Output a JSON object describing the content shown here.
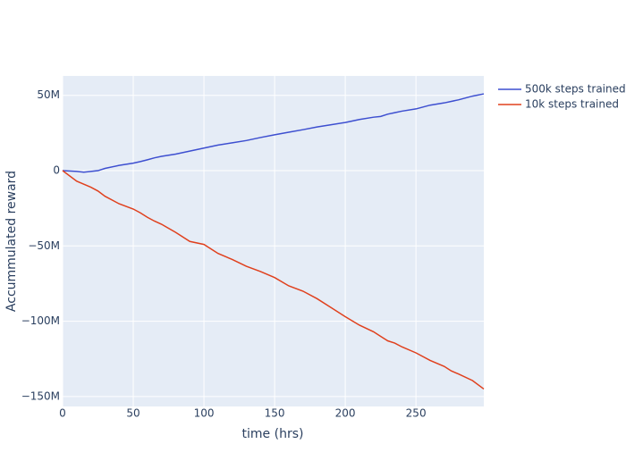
{
  "chart_data": {
    "type": "line",
    "x_label": "time (hrs)",
    "y_label": "Accummulated reward",
    "x": [
      0,
      10,
      15,
      20,
      25,
      30,
      40,
      50,
      55,
      60,
      65,
      70,
      80,
      90,
      100,
      110,
      120,
      130,
      140,
      150,
      160,
      170,
      180,
      190,
      200,
      210,
      220,
      225,
      230,
      235,
      240,
      250,
      260,
      270,
      275,
      280,
      290,
      298
    ],
    "series": [
      {
        "name": "500k steps trained",
        "color": "#3d4fd0",
        "values": [
          0,
          -500000,
          -1000000,
          -500000,
          0,
          1500000,
          3500000,
          5000000,
          6000000,
          7200000,
          8500000,
          9500000,
          11000000,
          13000000,
          15000000,
          17000000,
          18500000,
          20000000,
          22000000,
          23800000,
          25500000,
          27200000,
          29000000,
          30500000,
          32000000,
          34000000,
          35500000,
          36000000,
          37500000,
          38500000,
          39500000,
          41000000,
          43500000,
          45000000,
          46000000,
          47000000,
          49500000,
          51000000
        ]
      },
      {
        "name": "10k steps trained",
        "color": "#e0401d",
        "values": [
          0,
          -7000000,
          -9000000,
          -11000000,
          -13500000,
          -17000000,
          -22000000,
          -25500000,
          -28000000,
          -31000000,
          -33500000,
          -35600000,
          -41000000,
          -47000000,
          -49000000,
          -55000000,
          -59000000,
          -63500000,
          -67000000,
          -71000000,
          -76500000,
          -80000000,
          -85000000,
          -91000000,
          -97000000,
          -102600000,
          -107000000,
          -110000000,
          -113000000,
          -114500000,
          -117000000,
          -121000000,
          -126000000,
          -130000000,
          -133000000,
          -135000000,
          -139400000,
          -145000000
        ]
      }
    ],
    "xlim": [
      0,
      298
    ],
    "xticks": [
      0,
      50,
      100,
      150,
      200,
      250
    ],
    "ylim": [
      -156600000,
      62900000
    ],
    "yticks": [
      {
        "value": -150000000,
        "label": "−150M"
      },
      {
        "value": -100000000,
        "label": "−100M"
      },
      {
        "value": -50000000,
        "label": "−50M"
      },
      {
        "value": 0,
        "label": "0"
      },
      {
        "value": 50000000,
        "label": "50M"
      }
    ],
    "grid": true,
    "legend": "right",
    "background": "#e5ecf6"
  }
}
